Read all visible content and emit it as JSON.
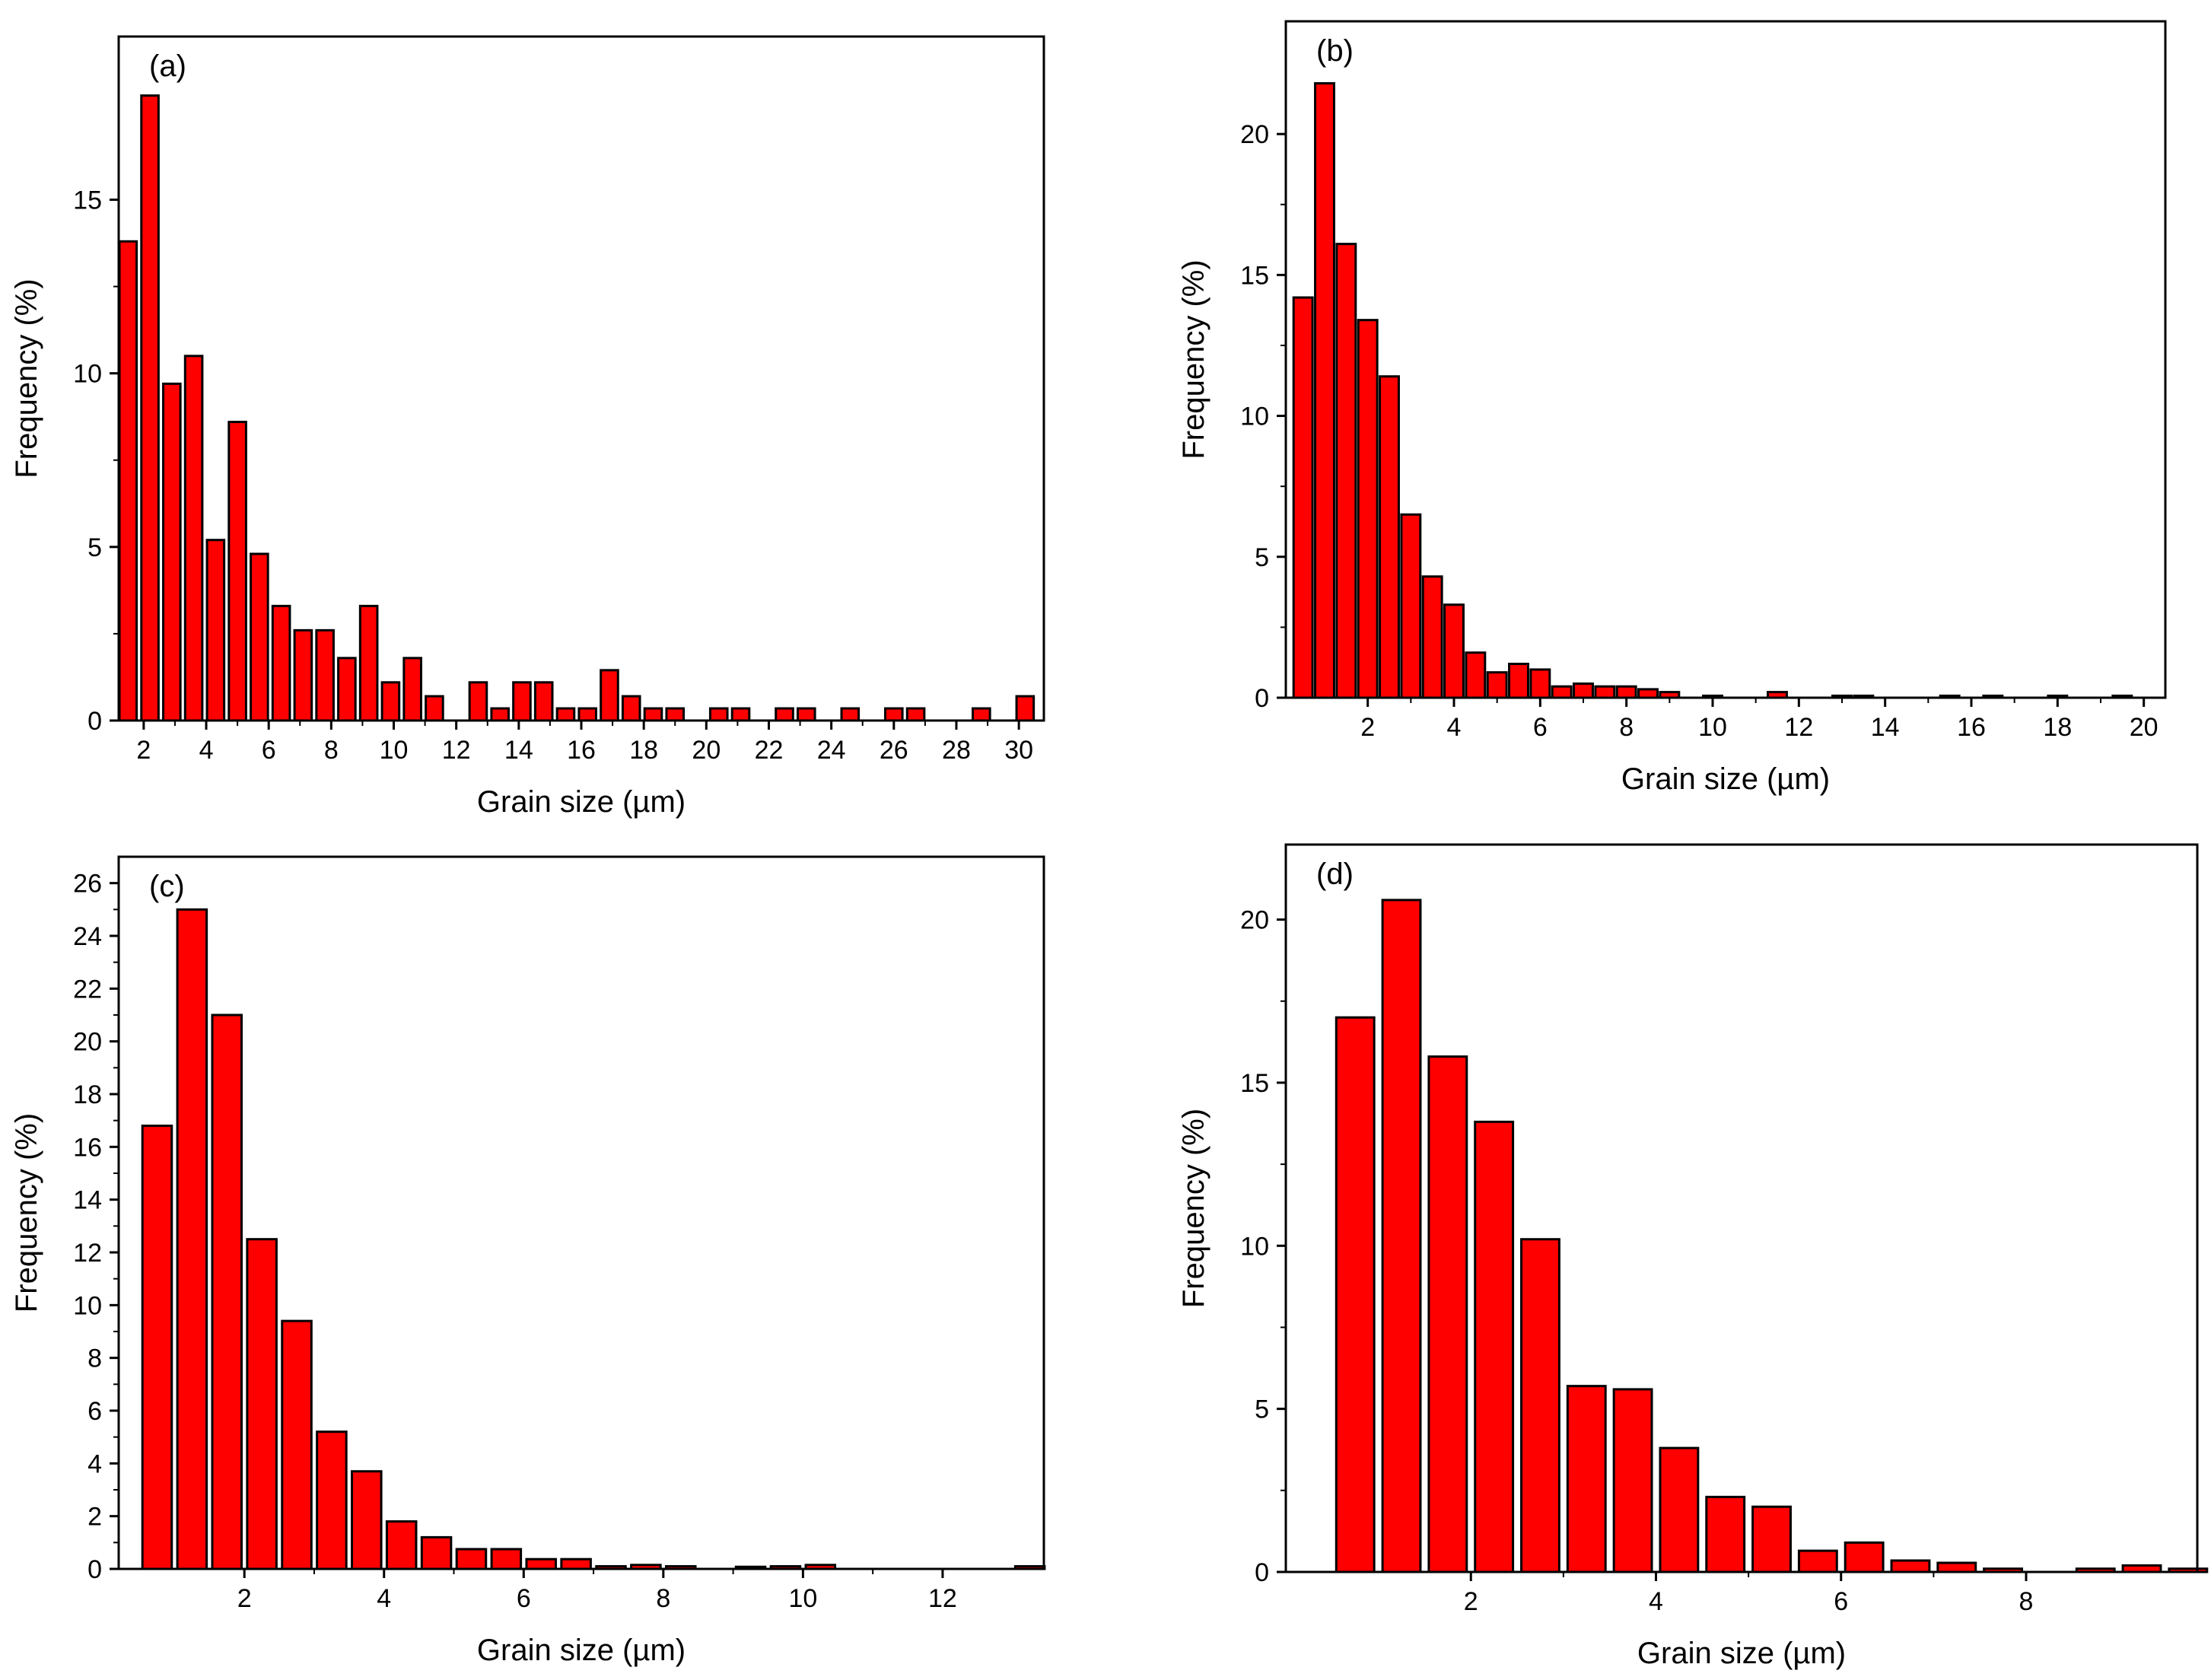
{
  "colors": {
    "bar_fill": "#ff0000",
    "bar_stroke": "#000000",
    "axis": "#000000",
    "background": "#ffffff"
  },
  "chart_data": [
    {
      "type": "bar",
      "panel_label": "(a)",
      "xlabel": "Grain size (µm)",
      "ylabel": "Frequency (%)",
      "xlim": [
        1.2,
        30.8
      ],
      "ylim": [
        0,
        19.7
      ],
      "bar_width": 0.55,
      "xticks": [
        2,
        4,
        6,
        8,
        10,
        12,
        14,
        16,
        18,
        20,
        22,
        24,
        26,
        28,
        30
      ],
      "yticks": [
        0,
        5,
        10,
        15
      ],
      "x": [
        1.5,
        2.2,
        2.9,
        3.6,
        4.3,
        5.0,
        5.7,
        6.4,
        7.1,
        7.8,
        8.5,
        9.2,
        9.9,
        10.6,
        11.3,
        12.7,
        13.4,
        14.1,
        14.8,
        15.5,
        16.2,
        16.9,
        17.6,
        18.3,
        19.0,
        20.4,
        21.1,
        22.5,
        23.2,
        24.6,
        26.0,
        26.7,
        28.8,
        30.2
      ],
      "values": [
        13.8,
        18.0,
        9.7,
        10.5,
        5.2,
        8.6,
        4.8,
        3.3,
        2.6,
        2.6,
        1.8,
        3.3,
        1.1,
        1.8,
        0.7,
        1.1,
        0.35,
        1.1,
        1.1,
        0.35,
        0.35,
        1.45,
        0.7,
        0.35,
        0.35,
        0.35,
        0.35,
        0.35,
        0.35,
        0.35,
        0.35,
        0.35,
        0.35,
        0.7
      ]
    },
    {
      "type": "bar",
      "panel_label": "(b)",
      "xlabel": "Grain size (µm)",
      "ylabel": "Frequency (%)",
      "xlim": [
        0.1,
        20.5
      ],
      "ylim": [
        0,
        24
      ],
      "bar_width": 0.44,
      "xticks": [
        2,
        4,
        6,
        8,
        10,
        12,
        14,
        16,
        18,
        20
      ],
      "yticks": [
        0,
        5,
        10,
        15,
        20
      ],
      "x": [
        0.5,
        1.0,
        1.5,
        2.0,
        2.5,
        3.0,
        3.5,
        4.0,
        4.5,
        5.0,
        5.5,
        6.0,
        6.5,
        7.0,
        7.5,
        8.0,
        8.5,
        9.0,
        10.0,
        11.5,
        13.0,
        13.5,
        15.5,
        16.5,
        18.0,
        19.5
      ],
      "values": [
        14.2,
        21.8,
        16.1,
        13.4,
        11.4,
        6.5,
        4.3,
        3.3,
        1.6,
        0.9,
        1.2,
        1.0,
        0.4,
        0.5,
        0.4,
        0.4,
        0.3,
        0.2,
        0.07,
        0.2,
        0.07,
        0.07,
        0.07,
        0.07,
        0.07,
        0.07
      ]
    },
    {
      "type": "bar",
      "panel_label": "(c)",
      "xlabel": "Grain size (µm)",
      "ylabel": "Frequency (%)",
      "xlim": [
        0.2,
        13.45
      ],
      "ylim": [
        0,
        27
      ],
      "bar_width": 0.42,
      "xticks": [
        2,
        4,
        6,
        8,
        10,
        12
      ],
      "yticks": [
        0,
        2,
        4,
        6,
        8,
        10,
        12,
        14,
        16,
        18,
        20,
        22,
        24,
        26
      ],
      "x": [
        0.75,
        1.25,
        1.75,
        2.25,
        2.75,
        3.25,
        3.75,
        4.25,
        4.75,
        5.25,
        5.75,
        6.25,
        6.75,
        7.25,
        7.75,
        8.25,
        9.25,
        9.75,
        10.25,
        13.25
      ],
      "values": [
        16.8,
        25.0,
        21.0,
        12.5,
        9.4,
        5.2,
        3.7,
        1.8,
        1.2,
        0.75,
        0.75,
        0.37,
        0.37,
        0.1,
        0.15,
        0.1,
        0.08,
        0.1,
        0.15,
        0.1
      ]
    },
    {
      "type": "bar",
      "panel_label": "(d)",
      "xlabel": "Grain size (µm)",
      "ylabel": "Frequency (%)",
      "xlim": [
        0.0,
        9.85
      ],
      "ylim": [
        0,
        22.3
      ],
      "bar_width": 0.41,
      "xticks": [
        2,
        4,
        6,
        8
      ],
      "yticks": [
        0,
        5,
        10,
        15,
        20
      ],
      "x": [
        0.75,
        1.25,
        1.75,
        2.25,
        2.75,
        3.25,
        3.75,
        4.25,
        4.75,
        5.25,
        5.75,
        6.25,
        6.75,
        7.25,
        7.75,
        8.75,
        9.25,
        9.75
      ],
      "values": [
        17.0,
        20.6,
        15.8,
        13.8,
        10.2,
        5.7,
        5.6,
        3.8,
        2.3,
        2.0,
        0.65,
        0.9,
        0.35,
        0.28,
        0.1,
        0.1,
        0.2,
        0.1
      ]
    }
  ]
}
